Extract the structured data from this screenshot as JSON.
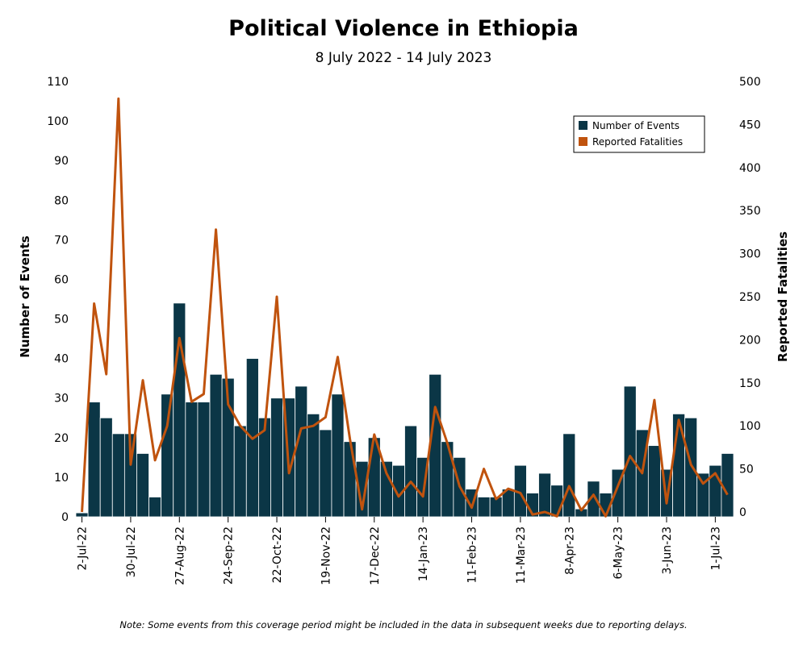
{
  "chart_data": {
    "type": "bar",
    "title": "Political Violence in Ethiopia",
    "subtitle": "8 July 2022 - 14 July 2023",
    "ylabel": "Number of Events",
    "y2label": "Reported Fatalities",
    "ylim": [
      0,
      110
    ],
    "y2lim": [
      0,
      500
    ],
    "yticks": [
      0,
      10,
      20,
      30,
      40,
      50,
      60,
      70,
      80,
      90,
      100,
      110
    ],
    "y2ticks": [
      0,
      50,
      100,
      150,
      200,
      250,
      300,
      350,
      400,
      450,
      500
    ],
    "xtick_labels": [
      "2-Jul-22",
      "30-Jul-22",
      "27-Aug-22",
      "24-Sep-22",
      "22-Oct-22",
      "19-Nov-22",
      "17-Dec-22",
      "14-Jan-23",
      "11-Feb-23",
      "11-Mar-23",
      "8-Apr-23",
      "6-May-23",
      "3-Jun-23",
      "1-Jul-23"
    ],
    "legend_position": "top-right",
    "grid": false,
    "series": [
      {
        "name": "Number of Events",
        "type": "bar",
        "axis": "left",
        "color": "#0b3646",
        "values": [
          1,
          29,
          25,
          21,
          21,
          16,
          5,
          31,
          54,
          29,
          29,
          36,
          35,
          23,
          40,
          25,
          30,
          30,
          33,
          26,
          22,
          31,
          19,
          14,
          20,
          14,
          13,
          23,
          15,
          36,
          19,
          15,
          7,
          5,
          5,
          7,
          13,
          6,
          11,
          8,
          21,
          2,
          9,
          6,
          12,
          33,
          22,
          18,
          12,
          26,
          25,
          11,
          13,
          16
        ]
      },
      {
        "name": "Reported Fatalities",
        "type": "line",
        "axis": "right",
        "color": "#c0530e",
        "values": [
          0,
          242,
          160,
          480,
          55,
          153,
          60,
          100,
          202,
          128,
          137,
          328,
          125,
          100,
          85,
          95,
          250,
          45,
          97,
          100,
          110,
          180,
          85,
          3,
          90,
          45,
          18,
          35,
          18,
          122,
          80,
          30,
          5,
          50,
          15,
          27,
          22,
          -3,
          0,
          -5,
          30,
          2,
          20,
          -5,
          30,
          65,
          45,
          130,
          10,
          107,
          55,
          33,
          45,
          20
        ]
      }
    ]
  },
  "note": "Note: Some events from this coverage period might be included in the data in subsequent weeks due to reporting delays."
}
